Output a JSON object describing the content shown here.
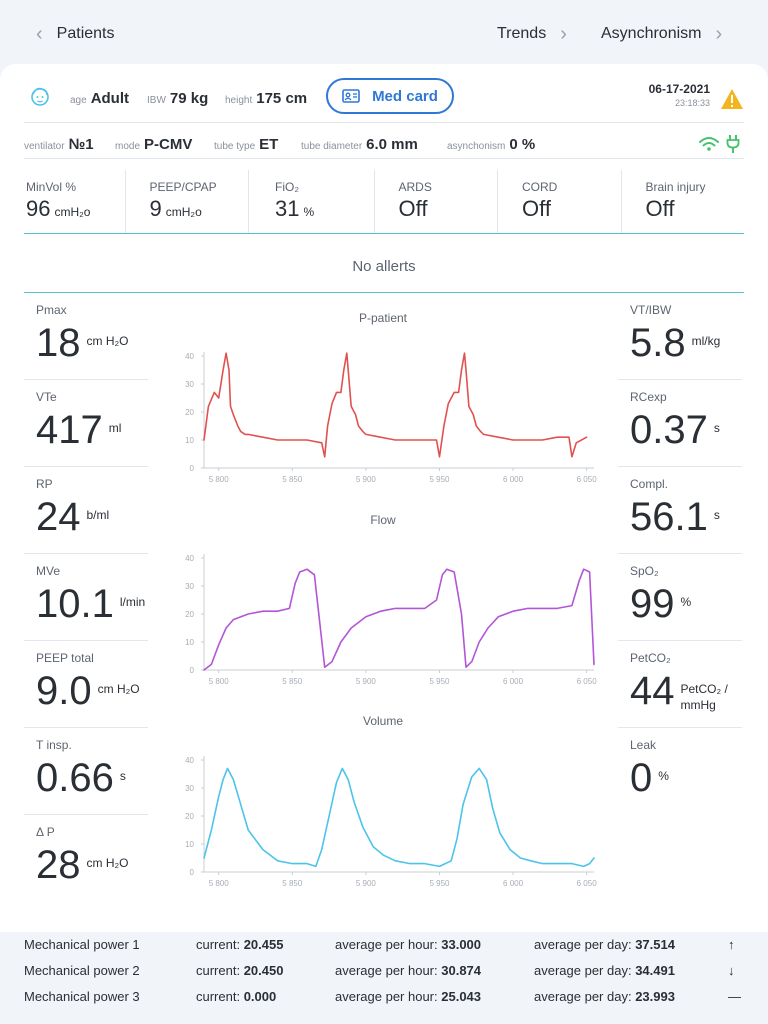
{
  "nav": {
    "back_label": "Patients",
    "trends_label": "Trends",
    "asynch_label": "Asynchronism"
  },
  "patient": {
    "age_key": "age",
    "age_val": "Adult",
    "ibw_key": "IBW",
    "ibw_val": "79 kg",
    "height_key": "height",
    "height_val": "175 cm",
    "medcard_label": "Med card",
    "date": "06-17-2021",
    "time": "23:18:33"
  },
  "ventilator": {
    "vent_key": "ventilator",
    "vent_val": "№1",
    "mode_key": "mode",
    "mode_val": "P-CMV",
    "tube_key": "tube type",
    "tube_val": "ET",
    "diam_key": "tube diameter",
    "diam_val": "6.0 mm",
    "asyn_key": "asynchonism",
    "asyn_val": "0 %"
  },
  "settings": [
    {
      "label": "MinVol %",
      "value": "96",
      "unit": "cmH₂o"
    },
    {
      "label": "PEEP/CPAP",
      "value": "9",
      "unit": "cmH₂o"
    },
    {
      "label": "FiO₂",
      "value": "31",
      "unit": "%"
    },
    {
      "label": "ARDS",
      "value": "Off",
      "unit": ""
    },
    {
      "label": "CORD",
      "value": "Off",
      "unit": ""
    },
    {
      "label": "Brain injury",
      "value": "Off",
      "unit": ""
    }
  ],
  "alerts_text": "No allerts",
  "left_metrics": [
    {
      "label": "Pmax",
      "value": "18",
      "unit": "cm H₂O"
    },
    {
      "label": "VTe",
      "value": "417",
      "unit": "ml"
    },
    {
      "label": "RP",
      "value": "24",
      "unit": "b/ml"
    },
    {
      "label": "MVe",
      "value": "10.1",
      "unit": "l/min"
    },
    {
      "label": "PEEP total",
      "value": "9.0",
      "unit": "cm H₂O"
    },
    {
      "label": "T insp.",
      "value": "0.66",
      "unit": "s"
    },
    {
      "label": "Δ P",
      "value": "28",
      "unit": "cm H₂O"
    }
  ],
  "right_metrics": [
    {
      "label": "VT/IBW",
      "value": "5.8",
      "unit": "ml/kg"
    },
    {
      "label": "RCexp",
      "value": "0.37",
      "unit": "s"
    },
    {
      "label": "Compl.",
      "value": "56.1",
      "unit": "s"
    },
    {
      "label": "SpO₂",
      "value": "99",
      "unit": "%"
    },
    {
      "label": "PetCO₂",
      "value": "44",
      "unit": "PetCO₂ / mmHg"
    },
    {
      "label": "Leak",
      "value": "0",
      "unit": "%"
    }
  ],
  "colors": {
    "accent": "#2f78d6",
    "teal_line": "#53c0d0",
    "pressure": "#e0524f",
    "flow": "#b256d6",
    "volume": "#4dc3ea",
    "warning": "#f2b51e",
    "connected": "#43c36b"
  },
  "chart_data": [
    {
      "type": "line",
      "title": "P-patient",
      "x_ticks": [
        "5 800",
        "5 850",
        "5 900",
        "5 950",
        "6 000",
        "6 050"
      ],
      "y_ticks": [
        "0",
        "10",
        "20",
        "30",
        "40"
      ],
      "ylim": [
        0,
        40
      ],
      "xlim": [
        5790,
        6055
      ],
      "series": [
        {
          "x": [
            5790,
            5793,
            5797,
            5800,
            5803,
            5805,
            5807,
            5808,
            5810,
            5813,
            5815,
            5818,
            5820,
            5830,
            5840,
            5850,
            5860,
            5870,
            5872,
            5874,
            5877,
            5880,
            5883,
            5885,
            5887,
            5888,
            5890,
            5893,
            5895,
            5898,
            5900,
            5910,
            5920,
            5930,
            5940,
            5948,
            5950,
            5953,
            5956,
            5960,
            5963,
            5965,
            5967,
            5968,
            5970,
            5973,
            5975,
            5978,
            5980,
            5990,
            6000,
            6010,
            6020,
            6030,
            6038,
            6040,
            6043,
            6050
          ],
          "y": [
            10,
            22,
            27,
            25,
            35,
            41,
            35,
            22,
            19,
            15,
            13,
            12,
            12,
            11,
            10,
            10,
            10,
            9,
            4,
            15,
            23,
            27,
            27,
            35,
            41,
            35,
            22,
            19,
            15,
            13,
            12,
            11,
            10,
            10,
            10,
            10,
            4,
            15,
            23,
            27,
            27,
            35,
            41,
            35,
            22,
            19,
            15,
            13,
            12,
            11,
            10,
            10,
            10,
            11,
            11,
            4,
            9,
            11
          ]
        }
      ]
    },
    {
      "type": "line",
      "title": "Flow",
      "x_ticks": [
        "5 800",
        "5 850",
        "5 900",
        "5 950",
        "6 000",
        "6 050"
      ],
      "y_ticks": [
        "0",
        "10",
        "20",
        "30",
        "40"
      ],
      "ylim": [
        0,
        40
      ],
      "xlim": [
        5790,
        6055
      ],
      "series": [
        {
          "x": [
            5790,
            5795,
            5800,
            5805,
            5810,
            5820,
            5830,
            5840,
            5848,
            5852,
            5855,
            5860,
            5865,
            5868,
            5872,
            5877,
            5883,
            5890,
            5900,
            5910,
            5920,
            5930,
            5940,
            5948,
            5952,
            5955,
            5960,
            5965,
            5968,
            5972,
            5977,
            5983,
            5990,
            6000,
            6010,
            6020,
            6030,
            6040,
            6045,
            6048,
            6052,
            6055
          ],
          "y": [
            0,
            2,
            9,
            15,
            18,
            20,
            21,
            21,
            22,
            31,
            35,
            36,
            34,
            20,
            1,
            3,
            10,
            15,
            19,
            21,
            22,
            22,
            22,
            25,
            34,
            36,
            35,
            20,
            1,
            3,
            10,
            15,
            19,
            21,
            22,
            22,
            22,
            23,
            32,
            36,
            35,
            2
          ]
        }
      ]
    },
    {
      "type": "line",
      "title": "Volume",
      "x_ticks": [
        "5 800",
        "5 850",
        "5 900",
        "5 950",
        "6 000",
        "6 050"
      ],
      "y_ticks": [
        "0",
        "10",
        "20",
        "30",
        "40"
      ],
      "ylim": [
        0,
        40
      ],
      "xlim": [
        5790,
        6055
      ],
      "series": [
        {
          "x": [
            5790,
            5795,
            5800,
            5803,
            5806,
            5810,
            5815,
            5820,
            5830,
            5840,
            5850,
            5860,
            5866,
            5870,
            5875,
            5880,
            5884,
            5888,
            5892,
            5898,
            5905,
            5912,
            5920,
            5930,
            5940,
            5950,
            5958,
            5962,
            5966,
            5972,
            5977,
            5982,
            5986,
            5991,
            5998,
            6005,
            6012,
            6020,
            6030,
            6040,
            6048,
            6052,
            6055
          ],
          "y": [
            5,
            15,
            27,
            33,
            37,
            33,
            24,
            15,
            8,
            4,
            3,
            3,
            2,
            8,
            20,
            32,
            37,
            33,
            25,
            16,
            9,
            6,
            4,
            3,
            3,
            2,
            4,
            12,
            24,
            34,
            37,
            33,
            23,
            14,
            8,
            5,
            4,
            3,
            3,
            3,
            2,
            3,
            5
          ]
        }
      ]
    }
  ],
  "mech_power": [
    {
      "name": "Mechanical power 1",
      "current_key": "current:",
      "current": "20.455",
      "hour_key": "average per hour:",
      "hour": "33.000",
      "day_key": "average per day:",
      "day": "37.514",
      "trend": "↑"
    },
    {
      "name": "Mechanical power 2",
      "current_key": "current:",
      "current": "20.450",
      "hour_key": "average per hour:",
      "hour": "30.874",
      "day_key": "average per day:",
      "day": "34.491",
      "trend": "↓"
    },
    {
      "name": "Mechanical power 3",
      "current_key": "current:",
      "current": "0.000",
      "hour_key": "average per hour:",
      "hour": "25.043",
      "day_key": "average per day:",
      "day": "23.993",
      "trend": "—"
    }
  ]
}
